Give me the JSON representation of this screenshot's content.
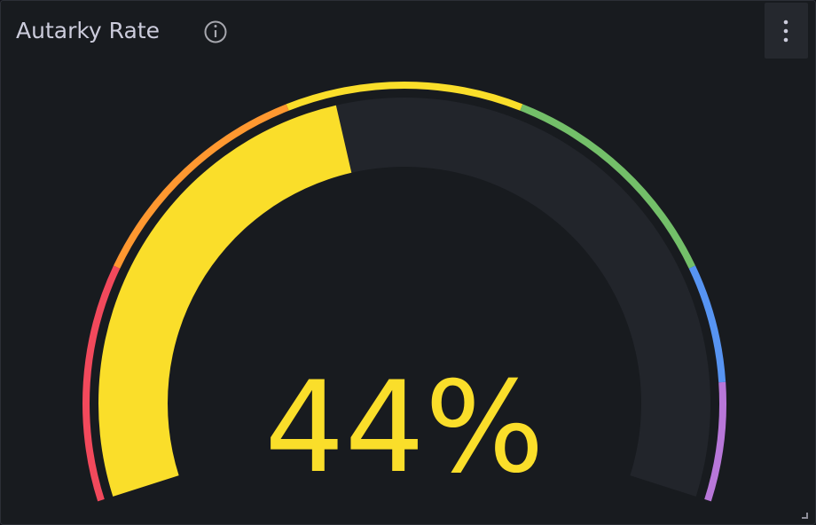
{
  "chart_data": {
    "type": "gauge",
    "title": "Autarky Rate",
    "value": 44,
    "value_label": "44%",
    "color": "#fade2a",
    "min": 0,
    "max": 100,
    "thresholds": [
      {
        "value": 0,
        "color": "#f2495c"
      },
      {
        "value": 20,
        "color": "#ff9830"
      },
      {
        "value": 40,
        "color": "#fade2a"
      },
      {
        "value": 60,
        "color": "#73bf69"
      },
      {
        "value": 80,
        "color": "#5794f2"
      },
      {
        "value": 90,
        "color": "#b877d9"
      }
    ]
  }
}
